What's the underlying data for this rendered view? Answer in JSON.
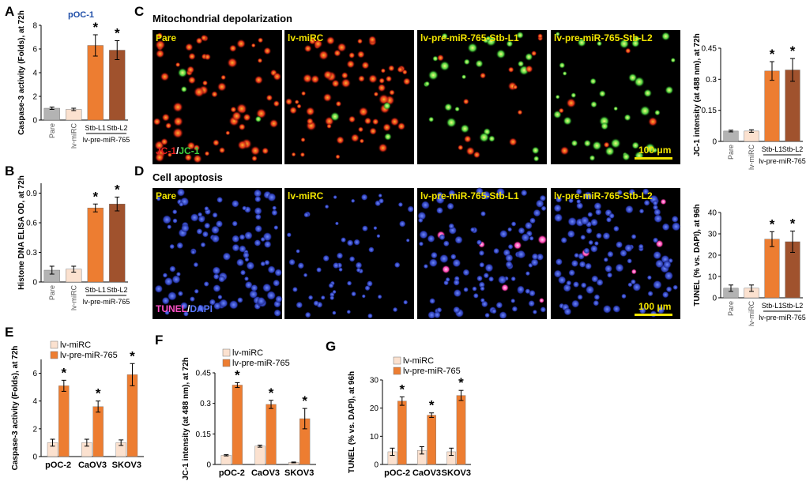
{
  "colors": {
    "pare": "#b3b3b3",
    "lv_mirc": "#fbe1cf",
    "l1": "#ed7d31",
    "l2": "#a0522d",
    "jc1_red": "#e02020",
    "jc1_green": "#40d040",
    "tunel": "#ff40c0",
    "dapi": "#4060e0",
    "panel_label": "#f2e500"
  },
  "panels": {
    "A": "A",
    "B": "B",
    "C": "C",
    "D": "D",
    "E": "E",
    "F": "F",
    "G": "G"
  },
  "cell_line_label": "pOC-1",
  "micro": {
    "C_title": "Mitochondrial depolarization",
    "D_title": "Cell apoptosis",
    "C_labels": [
      "Pare",
      "lv-miRC",
      "lv-pre-miR-765-Stb-L1",
      "lv-pre-miR-765-Stb-L2"
    ],
    "D_labels": [
      "Pare",
      "lv-miRC",
      "lv-pre-miR-765-Stb-L1",
      "lv-pre-miR-765-Stb-L2"
    ],
    "C_stain_a": "JC-1",
    "C_stain_sep": "/",
    "C_stain_b": "JC-1",
    "D_stain_a": "TUNEL",
    "D_stain_sep": "/",
    "D_stain_b": "DAPI",
    "C_scale": "100 μm",
    "D_scale": "100 μm"
  },
  "chart_data": [
    {
      "id": "A",
      "type": "bar",
      "categories": [
        "Pare",
        "lv-miRC",
        "Stb-L1",
        "Stb-L2"
      ],
      "group_label": "lv-pre-miR-765",
      "values": [
        1.0,
        0.9,
        6.3,
        5.9
      ],
      "errors": [
        0.1,
        0.1,
        0.9,
        0.8
      ],
      "significant": [
        false,
        false,
        true,
        true
      ],
      "ylabel": "Caspase-3 activity (Folds), at 72h",
      "ylim": [
        0,
        8
      ],
      "yticks": [
        "0",
        "2",
        "4",
        "6",
        "8"
      ]
    },
    {
      "id": "B",
      "type": "bar",
      "categories": [
        "Pare",
        "lv-miRC",
        "Stb-L1",
        "Stb-L2"
      ],
      "group_label": "lv-pre-miR-765",
      "values": [
        0.12,
        0.13,
        0.75,
        0.79
      ],
      "errors": [
        0.04,
        0.03,
        0.04,
        0.07
      ],
      "significant": [
        false,
        false,
        true,
        true
      ],
      "ylabel": "Histone DNA ELISA OD, at 72h",
      "ylim": [
        0,
        1.0
      ],
      "yticks": [
        "0",
        "0.3",
        "0.6",
        "0.9"
      ]
    },
    {
      "id": "C_quant",
      "type": "bar",
      "categories": [
        "Pare",
        "lv-miRC",
        "Stb-L1",
        "Stb-L2"
      ],
      "group_label": "lv-pre-miR-765",
      "values": [
        0.05,
        0.05,
        0.34,
        0.345
      ],
      "errors": [
        0.004,
        0.006,
        0.045,
        0.055
      ],
      "significant": [
        false,
        false,
        true,
        true
      ],
      "ylabel": "JC-1 intensity (at 488 nm), at 72h",
      "ylim": [
        0,
        0.45
      ],
      "yticks": [
        "0",
        "0.15",
        "0.3",
        "0.45"
      ]
    },
    {
      "id": "D_quant",
      "type": "bar",
      "categories": [
        "Pare",
        "lv-miRC",
        "Stb-L1",
        "Stb-L2"
      ],
      "group_label": "lv-pre-miR-765",
      "values": [
        4.5,
        4.5,
        27.5,
        26.3
      ],
      "errors": [
        1.5,
        1.5,
        3.5,
        5.0
      ],
      "significant": [
        false,
        false,
        true,
        true
      ],
      "ylabel": "TUNEL (% vs. DAPI), at 96h",
      "ylim": [
        0,
        40
      ],
      "yticks": [
        "0",
        "10",
        "20",
        "30",
        "40"
      ]
    },
    {
      "id": "E",
      "type": "bar",
      "categories": [
        "pOC-2",
        "CaOV3",
        "SKOV3"
      ],
      "series": [
        {
          "name": "lv-miRC",
          "values": [
            1.0,
            1.0,
            1.0
          ],
          "errors": [
            0.25,
            0.25,
            0.2
          ]
        },
        {
          "name": "lv-pre-miR-765",
          "values": [
            5.1,
            3.6,
            5.9
          ],
          "errors": [
            0.4,
            0.4,
            0.8
          ]
        }
      ],
      "significant": [
        true,
        true,
        true
      ],
      "ylabel": "Caspase-3 activity (Folds), at 72h",
      "ylim": [
        0,
        7
      ],
      "yticks": [
        "0",
        "2",
        "4",
        "6"
      ]
    },
    {
      "id": "F",
      "type": "bar",
      "categories": [
        "pOC-2",
        "CaOV3",
        "SKOV3"
      ],
      "series": [
        {
          "name": "lv-miRC",
          "values": [
            0.045,
            0.09,
            0.01
          ],
          "errors": [
            0.003,
            0.005,
            0.002
          ]
        },
        {
          "name": "lv-pre-miR-765",
          "values": [
            0.39,
            0.295,
            0.225
          ],
          "errors": [
            0.012,
            0.02,
            0.05
          ]
        }
      ],
      "significant": [
        true,
        true,
        true
      ],
      "ylabel": "JC-1 intensity (at 488 nm), at 72h",
      "ylim": [
        0,
        0.45
      ],
      "yticks": [
        "0",
        "0.15",
        "0.3",
        "0.45"
      ]
    },
    {
      "id": "G",
      "type": "bar",
      "categories": [
        "pOC-2",
        "CaOV3",
        "SKOV3"
      ],
      "series": [
        {
          "name": "lv-miRC",
          "values": [
            4.5,
            5.0,
            4.5
          ],
          "errors": [
            1.3,
            1.3,
            1.3
          ]
        },
        {
          "name": "lv-pre-miR-765",
          "values": [
            22.5,
            17.5,
            24.5
          ],
          "errors": [
            1.5,
            0.8,
            1.8
          ]
        }
      ],
      "significant": [
        true,
        true,
        true
      ],
      "ylabel": "TUNEL (% vs. DAPI), at 96h",
      "ylim": [
        0,
        30
      ],
      "yticks": [
        "0",
        "10",
        "20",
        "30"
      ]
    }
  ]
}
